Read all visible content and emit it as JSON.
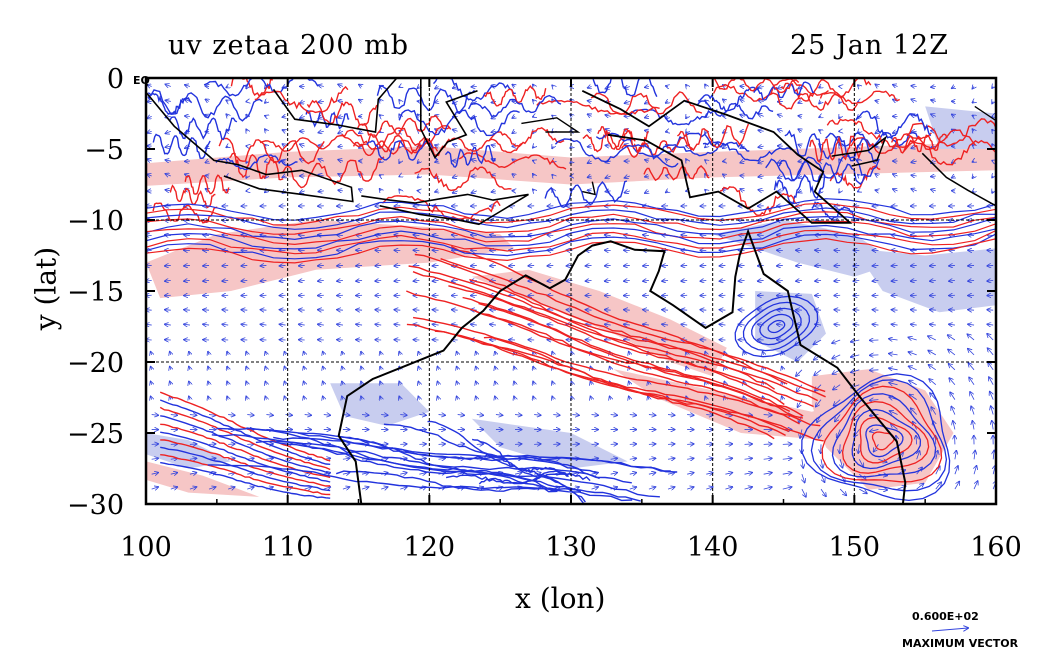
{
  "title_left": "uv zetaa 200 mb",
  "title_right": "25 Jan 12Z",
  "xaxis": {
    "label": "x (lon)",
    "ticks": [
      "100",
      "110",
      "120",
      "130",
      "140",
      "150",
      "160"
    ],
    "range": [
      100,
      160
    ]
  },
  "yaxis": {
    "label": "y (lat)",
    "ticks": [
      "0",
      "−5",
      "−10",
      "−15",
      "−20",
      "−25",
      "−30"
    ],
    "range": [
      -30,
      0
    ]
  },
  "equator_label": "EQ",
  "vector_scale": {
    "value": "0.600E+02",
    "label": "MAXIMUM VECTOR"
  },
  "colors": {
    "positive": "#ee2222",
    "negative": "#2233dd",
    "positive_fill": "#f6c6c6",
    "negative_fill": "#c8cdef",
    "vectors": "#3344dd",
    "coast": "#000000"
  }
}
